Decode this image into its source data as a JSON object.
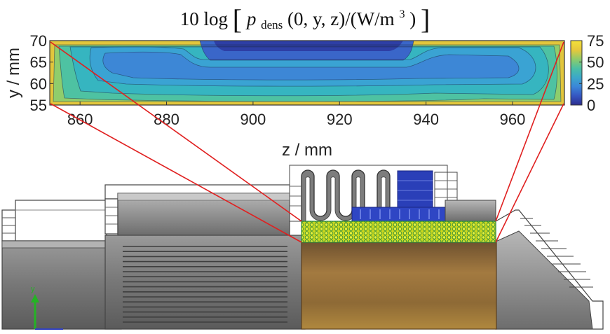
{
  "chart_data": {
    "type": "heatmap",
    "title": "10 log[p_dens(0, y, z)/(W/m^3)]",
    "title_parts": {
      "prefix": "10 log",
      "var": "p",
      "sub": "dens",
      "args": "(0, y, z)/(W/m",
      "sup": "3",
      "suffix": ")"
    },
    "xlabel": "z / mm",
    "ylabel": "y / mm",
    "xlim": [
      853,
      972
    ],
    "ylim": [
      55,
      70
    ],
    "x_ticks": [
      860,
      880,
      900,
      920,
      940,
      960
    ],
    "y_ticks": [
      55,
      60,
      65,
      70
    ],
    "colorbar": {
      "range": [
        0,
        75
      ],
      "ticks": [
        0,
        25,
        50,
        75
      ],
      "colors": [
        "#2c2d8e",
        "#3556c2",
        "#3b86d8",
        "#3ca8c9",
        "#4cc0a3",
        "#8fcb6a",
        "#e7c83b",
        "#f4e13a"
      ]
    },
    "contour_levels": [
      {
        "range": "< 40",
        "color": "#2e3fa6"
      },
      {
        "range": "40-45",
        "color": "#3a66c9"
      },
      {
        "range": "45-50",
        "color": "#3d87d6"
      },
      {
        "range": "50-55",
        "color": "#3aa3d3"
      },
      {
        "range": "55-60",
        "color": "#36b5c0"
      },
      {
        "range": "60-65",
        "color": "#4ec2a2"
      },
      {
        "range": "65-70",
        "color": "#8fcd6c"
      },
      {
        "range": "> 70",
        "color": "#e2c63c"
      }
    ],
    "grid": false,
    "legend": "colorbar right"
  },
  "colors": {
    "callout_lines": "#e02020",
    "steel_gray": "#8a8a8a",
    "brass": "#a8782e",
    "coil_yellow": "#d6e020",
    "blue_part": "#2a3fb8"
  },
  "scene": {
    "description_items": [
      "machine-housing",
      "stator-coil-region",
      "rotor-cylinder",
      "cooling-fins",
      "blue-bearing-block"
    ]
  }
}
